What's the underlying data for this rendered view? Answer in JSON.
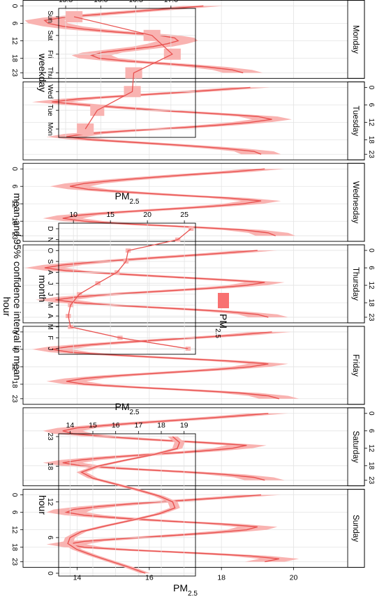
{
  "caption": "mean and 95% confidence interval in mean",
  "legend": {
    "label": "PM",
    "sub": "2.5",
    "color": "#f87171"
  },
  "colors": {
    "line": "#e8514f",
    "band": "#f9b3b1",
    "grid": "#e3e3e3",
    "strip": "#ffffff"
  },
  "chart_data": [
    {
      "id": "hourly_by_weekday",
      "type": "line",
      "title": "",
      "xlabel": "hour",
      "ylabel": "PM",
      "ylabel_sub": "2.5",
      "xlim": [
        0,
        23
      ],
      "ylim": [
        12.5,
        21.5
      ],
      "x_ticks": [
        0,
        6,
        12,
        18,
        23
      ],
      "y_ticks": [
        14,
        16,
        18,
        20
      ],
      "panels": [
        {
          "name": "Monday",
          "values": [
            17.5,
            16.5,
            15.5,
            14.5,
            13.6,
            13.1,
            13.2,
            13.6,
            14.2,
            15.1,
            16.2,
            16.7,
            16.8,
            16.5,
            16.1,
            15.4,
            14.7,
            14.4,
            14.6,
            15.4,
            16.6,
            17.6,
            18.3,
            18.6
          ]
        },
        {
          "name": "Tuesday",
          "values": [
            18.8,
            17.7,
            16.5,
            15.2,
            14.0,
            13.3,
            14.2,
            15.3,
            16.4,
            17.8,
            19.0,
            19.4,
            18.8,
            17.9,
            16.7,
            15.3,
            14.2,
            13.7,
            14.4,
            15.7,
            17.0,
            18.1,
            18.9,
            19.1
          ]
        },
        {
          "name": "Wednesday",
          "values": [
            19.2,
            18.3,
            17.1,
            16.0,
            15.0,
            14.2,
            13.8,
            14.3,
            15.4,
            16.7,
            18.2,
            19.1,
            18.6,
            17.6,
            16.3,
            15.0,
            14.0,
            13.6,
            14.2,
            15.5,
            17.2,
            18.6,
            19.3,
            19.5
          ]
        },
        {
          "name": "Thursday",
          "values": [
            19.0,
            18.0,
            16.8,
            15.6,
            14.5,
            13.6,
            13.1,
            13.7,
            15.0,
            16.4,
            17.9,
            19.2,
            18.7,
            17.7,
            16.4,
            15.0,
            14.0,
            13.4,
            14.0,
            15.2,
            16.7,
            18.1,
            19.0,
            19.3
          ]
        },
        {
          "name": "Friday",
          "values": [
            19.4,
            18.5,
            17.3,
            16.0,
            14.8,
            13.8,
            13.3,
            13.8,
            15.1,
            16.6,
            18.2,
            19.3,
            18.8,
            17.8,
            16.5,
            15.2,
            14.2,
            13.7,
            14.2,
            15.5,
            17.1,
            18.5,
            19.3,
            19.6
          ]
        },
        {
          "name": "Saturday",
          "values": [
            19.3,
            18.3,
            17.2,
            16.0,
            14.9,
            14.0,
            13.6,
            13.9,
            14.8,
            16.0,
            17.5,
            18.7,
            18.3,
            17.4,
            16.2,
            15.0,
            14.1,
            13.6,
            14.1,
            15.3,
            16.8,
            18.1,
            18.9,
            19.2
          ]
        },
        {
          "name": "Sunday",
          "values": [
            19.1,
            18.0,
            16.8,
            15.6,
            14.6,
            13.9,
            13.7,
            14.2,
            15.2,
            16.5,
            18.0,
            19.0,
            18.7,
            17.8,
            16.6,
            15.3,
            14.2,
            13.7,
            14.2,
            15.5,
            17.3,
            18.8,
            19.6,
            19.2
          ]
        }
      ]
    },
    {
      "id": "hour",
      "type": "line",
      "title": "",
      "xlabel": "hour",
      "ylabel": "PM",
      "ylabel_sub": "2.5",
      "xlim": [
        0,
        23
      ],
      "ylim": [
        13.5,
        19.5
      ],
      "x_ticks": [
        0,
        6,
        12,
        18,
        23
      ],
      "y_ticks": [
        14,
        15,
        16,
        17,
        18,
        19
      ],
      "values": [
        17.3,
        16.6,
        15.8,
        15.0,
        14.3,
        13.9,
        14.0,
        14.5,
        15.6,
        16.8,
        17.9,
        18.6,
        18.5,
        17.9,
        17.0,
        16.0,
        15.0,
        14.5,
        15.2,
        16.4,
        17.7,
        18.7,
        18.8,
        18.5
      ]
    },
    {
      "id": "month",
      "type": "line",
      "title": "",
      "xlabel": "month",
      "ylabel": "PM",
      "ylabel_sub": "2.5",
      "xlim": [
        1,
        12
      ],
      "ylim": [
        8,
        26.5
      ],
      "categories": [
        "J",
        "F",
        "M",
        "A",
        "M",
        "J",
        "J",
        "A",
        "S",
        "O",
        "N",
        "D"
      ],
      "y_ticks": [
        10,
        15,
        20,
        25
      ],
      "values": [
        25.5,
        16.3,
        9.6,
        9.3,
        9.6,
        10.8,
        13.3,
        15.9,
        17.1,
        17.4,
        24.1,
        25.9
      ]
    },
    {
      "id": "weekday",
      "type": "line",
      "title": "",
      "xlabel": "weekday",
      "ylabel": "PM",
      "ylabel_sub": "2.5",
      "xlim": [
        1,
        7
      ],
      "ylim": [
        15.4,
        17.35
      ],
      "categories": [
        "Mon",
        "Tue",
        "Wed",
        "Thu",
        "Fri",
        "Sat",
        "Sun"
      ],
      "y_ticks": [
        15.5,
        16.0,
        16.5,
        17.0
      ],
      "values": [
        15.78,
        15.95,
        16.45,
        16.47,
        17.02,
        16.73,
        15.62
      ],
      "ci_half": [
        0.12,
        0.1,
        0.12,
        0.12,
        0.12,
        0.12,
        0.12
      ]
    }
  ]
}
